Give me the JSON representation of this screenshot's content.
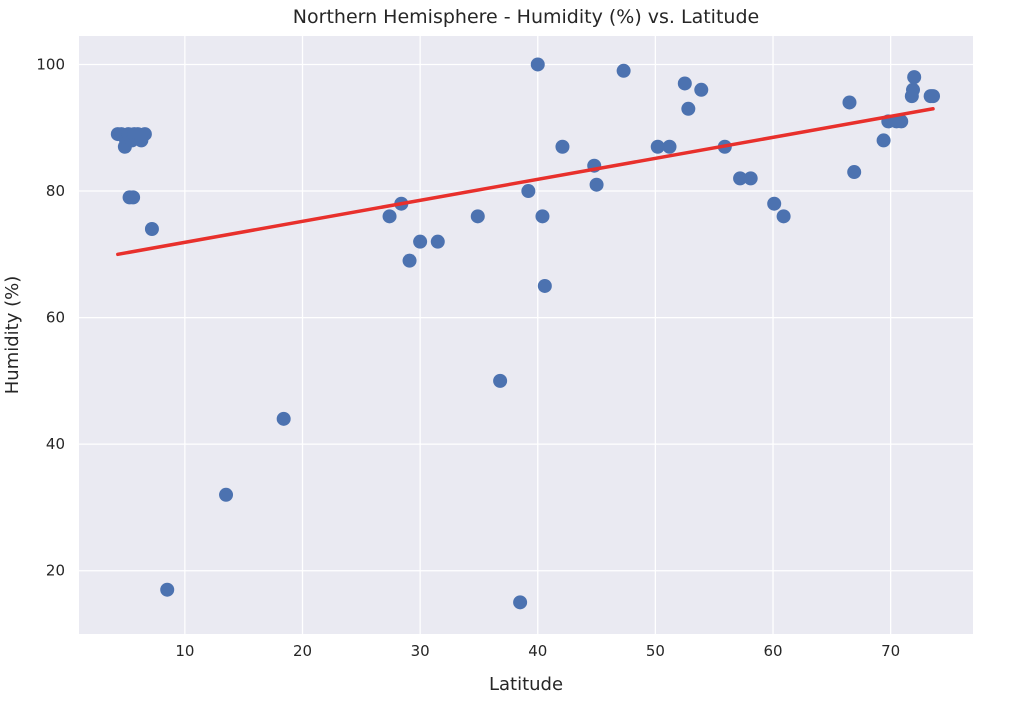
{
  "chart_data": {
    "type": "scatter",
    "title": "Northern Hemisphere - Humidity (%) vs. Latitude",
    "xlabel": "Latitude",
    "ylabel": "Humidity (%)",
    "xlim": [
      1,
      77
    ],
    "ylim": [
      10,
      104.5
    ],
    "xticks": [
      10,
      20,
      30,
      40,
      50,
      60,
      70
    ],
    "yticks": [
      20,
      40,
      60,
      80,
      100
    ],
    "grid": true,
    "colors": {
      "points": "#4c72b0",
      "regression": "#e8302c",
      "background": "#eaeaf2",
      "grid": "#ffffff"
    },
    "series": [
      {
        "type": "scatter",
        "x": [
          4.3,
          4.6,
          4.9,
          5.0,
          5.2,
          5.5,
          5.7,
          6.0,
          6.3,
          6.6,
          5.3,
          5.6,
          7.2,
          8.5,
          13.5,
          18.4,
          27.4,
          28.4,
          29.1,
          30.0,
          31.5,
          34.9,
          36.8,
          38.5,
          39.2,
          40.0,
          40.4,
          40.6,
          42.1,
          44.8,
          45.0,
          47.3,
          50.2,
          51.2,
          52.5,
          52.8,
          53.9,
          55.9,
          57.2,
          58.1,
          60.1,
          60.9,
          66.5,
          66.9,
          69.4,
          69.8,
          70.5,
          70.9,
          71.8,
          71.9,
          72.0,
          73.4,
          73.6
        ],
        "y": [
          89,
          89,
          87,
          88,
          89,
          88,
          89,
          89,
          88,
          89,
          79,
          79,
          74,
          17,
          32,
          44,
          76,
          78,
          69,
          72,
          72,
          76,
          50,
          15,
          80,
          100,
          76,
          65,
          87,
          84,
          81,
          99,
          87,
          87,
          97,
          93,
          96,
          87,
          82,
          82,
          78,
          76,
          94,
          83,
          88,
          91,
          91,
          91,
          95,
          96,
          98,
          95,
          95
        ]
      },
      {
        "type": "line",
        "x": [
          4.3,
          73.6
        ],
        "y": [
          70,
          93
        ]
      }
    ]
  }
}
